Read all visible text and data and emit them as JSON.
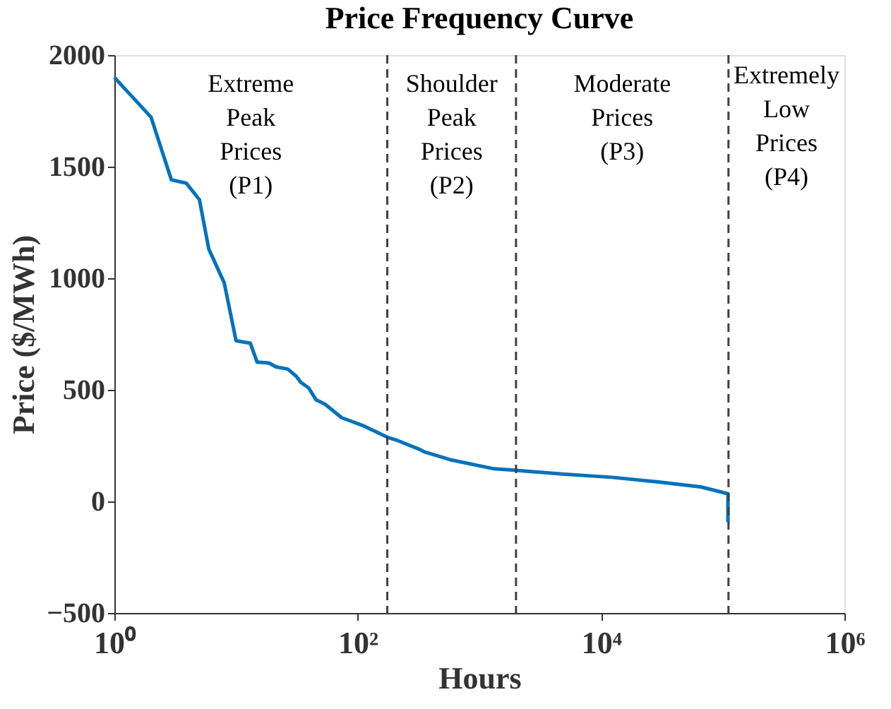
{
  "chart_data": {
    "type": "line",
    "title": "Price Frequency Curve",
    "xlabel": "Hours",
    "ylabel": "Price ($/MWh)",
    "log": "x",
    "xlim": [
      1,
      1000000
    ],
    "ylim": [
      -500,
      2000
    ],
    "yticks": [
      -500,
      0,
      500,
      1000,
      1500,
      2000
    ],
    "xticks": [
      {
        "value": 1,
        "label": "10⁰"
      },
      {
        "value": 100,
        "label": "10²"
      },
      {
        "value": 10000,
        "label": "10⁴"
      },
      {
        "value": 1000000,
        "label": "10⁶"
      }
    ],
    "grid": false,
    "line_style": "solid",
    "marker": "none",
    "series": [
      {
        "color": "#0072bd",
        "x": [
          1,
          2,
          2.94,
          3.9,
          5.0,
          5.97,
          8.0,
          10,
          13.1,
          14.9,
          18.6,
          21.3,
          26.6,
          31.2,
          34,
          39.6,
          45.3,
          54,
          73.8,
          110,
          176,
          205,
          320,
          349,
          594,
          1320,
          1995,
          5020,
          12200,
          29600,
          66000,
          110400,
          110400
        ],
        "values": [
          1900,
          1722,
          1441,
          1426,
          1352,
          1131,
          979,
          720,
          709,
          624,
          620,
          603,
          593,
          561,
          534,
          508,
          456,
          435,
          375,
          340,
          287,
          276,
          234,
          223,
          185,
          146,
          139,
          122,
          108,
          87,
          65,
          34,
          -93
        ]
      }
    ],
    "ref_lines": [
      {
        "axis": "x",
        "value": 175,
        "color": "#404040",
        "line_style": "dashed"
      },
      {
        "axis": "x",
        "value": 2000,
        "color": "#404040",
        "line_style": "dashed"
      },
      {
        "axis": "x",
        "value": 111500,
        "color": "#404040",
        "line_style": "dashed"
      }
    ],
    "annotations": [
      "Extreme\nPeak\nPrices\n(P1)",
      "Shoulder\nPeak\nPrices\n(P2)",
      "Moderate\nPrices\n(P3)",
      "Extremely\nLow\nPrices\n(P4)"
    ]
  }
}
